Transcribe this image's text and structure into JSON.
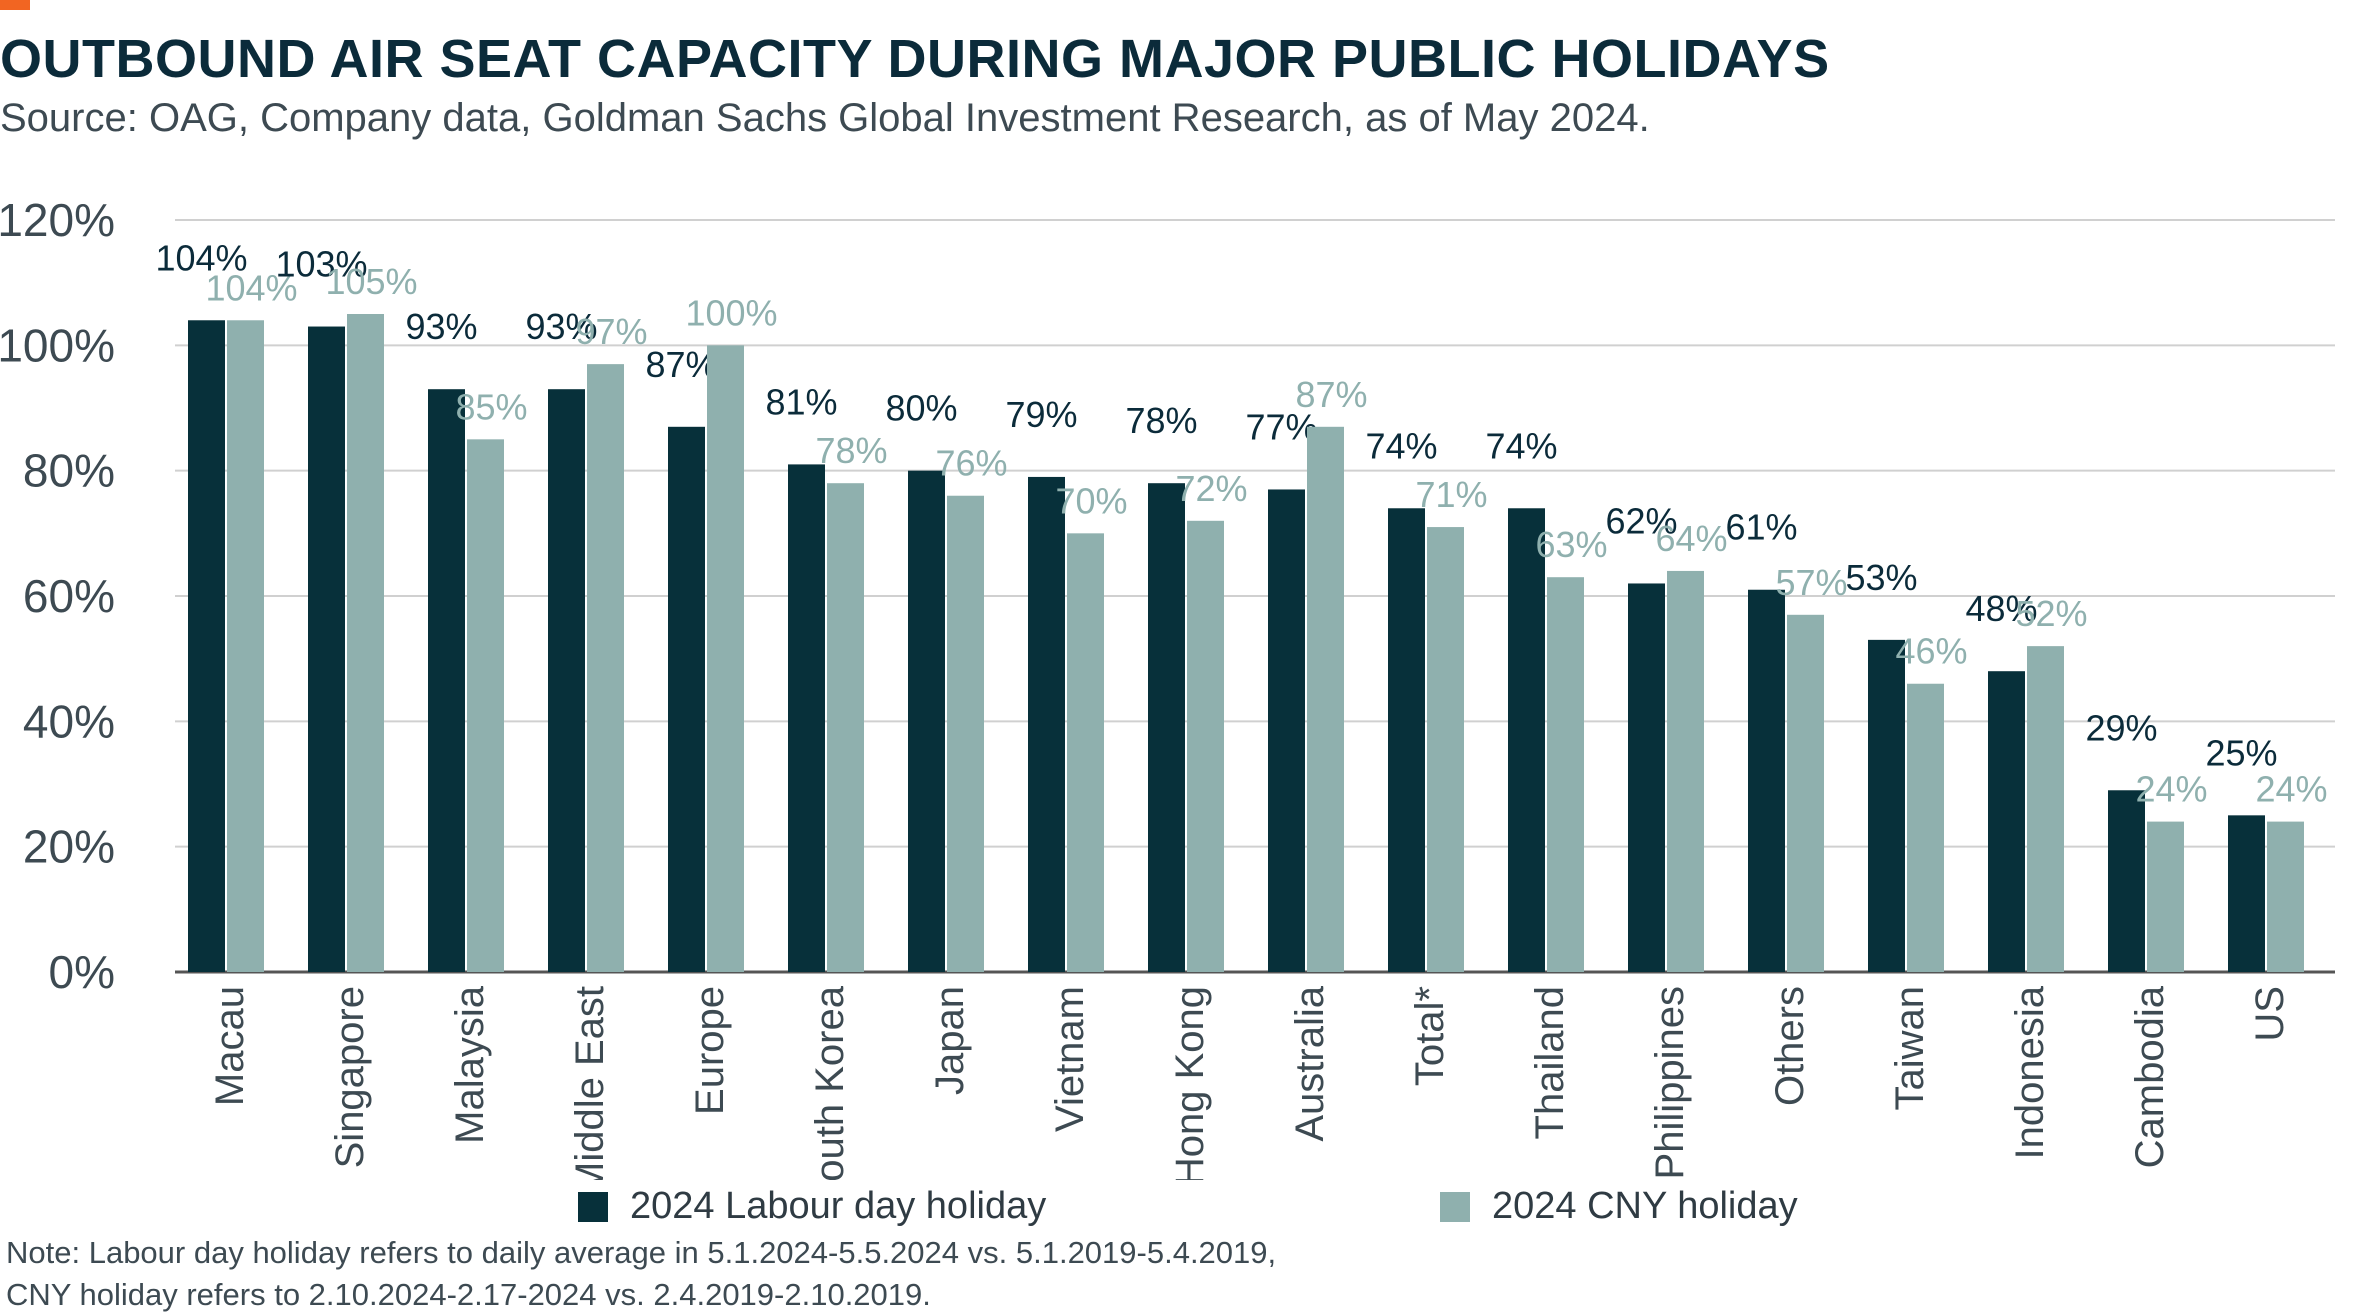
{
  "header": {
    "title": "OUTBOUND AIR SEAT CAPACITY DURING MAJOR PUBLIC HOLIDAYS",
    "subtitle": "Source: OAG, Company data, Goldman Sachs Global Investment Research, as of May 2024."
  },
  "colors": {
    "accent": "#f26522",
    "labour": "#07303a",
    "cny": "#8fb0ae",
    "grid": "#d0d0d0"
  },
  "legend": {
    "labour": "2024 Labour day holiday",
    "cny": "2024 CNY holiday"
  },
  "note": {
    "line1": "Note: Labour day holiday refers to daily average in 5.1.2024-5.5.2024 vs. 5.1.2019-5.4.2019,",
    "line2": "CNY holiday refers to 2.10.2024-2.17-2024 vs. 2.4.2019-2.10.2019."
  },
  "chart_data": {
    "type": "bar",
    "title": "OUTBOUND AIR SEAT CAPACITY DURING MAJOR PUBLIC HOLIDAYS",
    "xlabel": "",
    "ylabel": "",
    "ylim": [
      0,
      120
    ],
    "yticks": [
      "0%",
      "20%",
      "40%",
      "60%",
      "80%",
      "100%",
      "120%"
    ],
    "grid": true,
    "legend_position": "bottom",
    "categories": [
      "Macau",
      "Singapore",
      "Malaysia",
      "Middle East",
      "Europe",
      "South Korea",
      "Japan",
      "Vietnam",
      "Hong Kong",
      "Australia",
      "Total*",
      "Thailand",
      "Philippines",
      "Others",
      "Taiwan",
      "Indonesia",
      "Cambodia",
      "US"
    ],
    "series": [
      {
        "name": "2024 Labour day holiday",
        "values": [
          104,
          103,
          93,
          93,
          87,
          81,
          80,
          79,
          78,
          77,
          74,
          74,
          62,
          61,
          53,
          48,
          29,
          25
        ],
        "labels": [
          "104%",
          "103%",
          "93%",
          "93%",
          "87%",
          "81%",
          "80%",
          "79%",
          "78%",
          "77%",
          "74%",
          "74%",
          "62%",
          "61%",
          "53%",
          "48%",
          "29%",
          "25%"
        ]
      },
      {
        "name": "2024 CNY holiday",
        "values": [
          104,
          105,
          85,
          97,
          100,
          78,
          76,
          70,
          72,
          87,
          71,
          63,
          64,
          57,
          46,
          52,
          24,
          24
        ],
        "labels": [
          "104%",
          "105%",
          "85%",
          "97%",
          "100%",
          "78%",
          "76%",
          "70%",
          "72%",
          "87%",
          "71%",
          "63%",
          "64%",
          "57%",
          "46%",
          "52%",
          "24%",
          "24%"
        ]
      }
    ]
  }
}
